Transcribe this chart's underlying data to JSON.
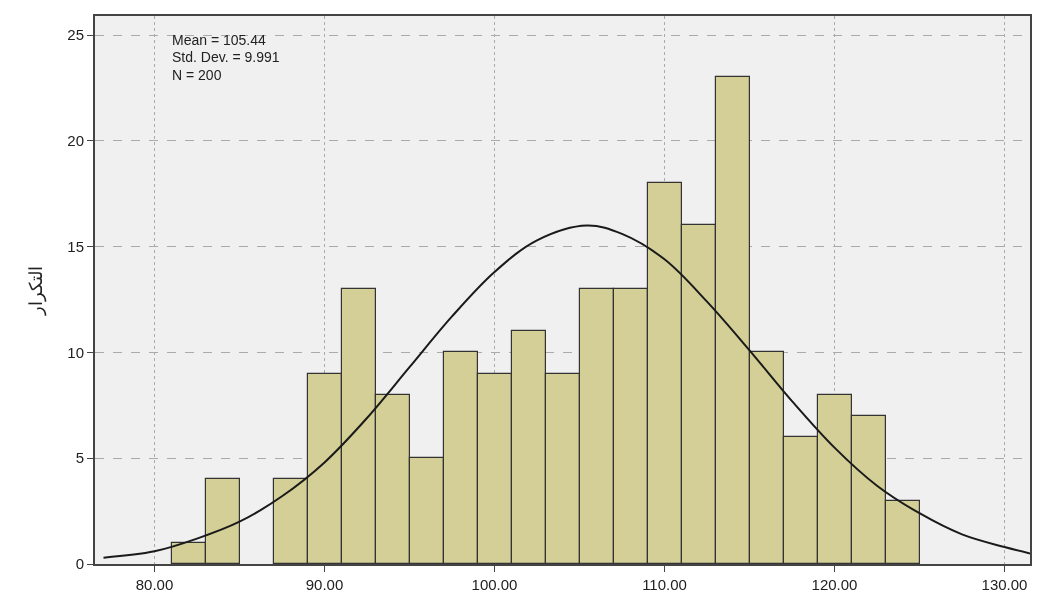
{
  "chart_data": {
    "type": "histogram",
    "ylabel": "التكرار",
    "annotations": [
      "Mean = 105.44",
      "Std. Dev. = 9.991",
      "N = 200"
    ],
    "bins": [
      81,
      83,
      85,
      87,
      89,
      91,
      93,
      95,
      97,
      99,
      101,
      103,
      105,
      107,
      109,
      111,
      113,
      115,
      117,
      119,
      121,
      123,
      125
    ],
    "series": [
      {
        "color": "#d4cf96",
        "values": [
          1,
          4,
          0,
          4,
          9,
          13,
          8,
          5,
          10,
          9,
          11,
          9,
          13,
          13,
          18,
          16,
          23,
          10,
          6,
          8,
          7,
          3
        ]
      },
      {
        "type": "line",
        "color": "#1a1a1a",
        "marker": "none",
        "line_style": "solid",
        "x": [
          77,
          80,
          82.5,
          85,
          87.5,
          90,
          92.5,
          95,
          97.5,
          100,
          102.5,
          105.44,
          107.5,
          110,
          112.5,
          115,
          117.5,
          120,
          122.5,
          125,
          127.5,
          130,
          131.5
        ],
        "values": [
          0.3,
          0.6,
          1.2,
          2.0,
          3.2,
          4.8,
          6.9,
          9.3,
          11.7,
          13.8,
          15.3,
          16.0,
          15.6,
          14.4,
          12.4,
          10.1,
          7.7,
          5.5,
          3.7,
          2.4,
          1.4,
          0.8,
          0.5
        ]
      }
    ],
    "xlim": [
      76.5,
      131.5
    ],
    "ylim": [
      0,
      25.9
    ],
    "xticks": [
      {
        "value": 80,
        "label": "80.00"
      },
      {
        "value": 90,
        "label": "90.00"
      },
      {
        "value": 100,
        "label": "100.00"
      },
      {
        "value": 110,
        "label": "110.00"
      },
      {
        "value": 120,
        "label": "120.00"
      },
      {
        "value": 130,
        "label": "130.00"
      }
    ],
    "yticks": [
      0,
      5,
      10,
      15,
      20,
      25
    ],
    "grid": true
  }
}
